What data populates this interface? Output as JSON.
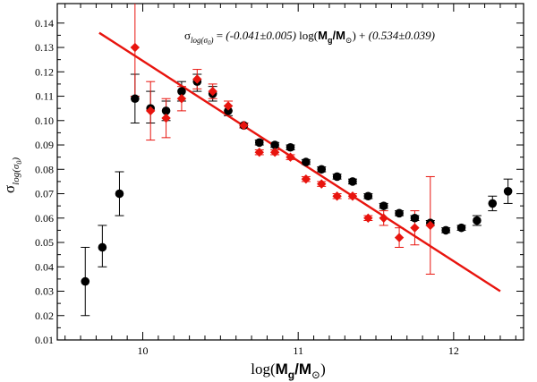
{
  "chart_data": {
    "type": "scatter",
    "xlabel": "log(M_g/M_sun)",
    "ylabel": "sigma_log(sigma_0)",
    "xlim": [
      9.45,
      12.45
    ],
    "ylim": [
      0.01,
      0.148
    ],
    "xticks": [
      "10",
      "11",
      "12"
    ],
    "yticks": [
      "0.01",
      "0.02",
      "0.03",
      "0.04",
      "0.05",
      "0.06",
      "0.07",
      "0.08",
      "0.09",
      "0.10",
      "0.11",
      "0.12",
      "0.13",
      "0.14"
    ],
    "annotation": {
      "prefix": "σ",
      "prefix_sub": "log(σ",
      "prefix_sub2": "0",
      "prefix_sub3": ")",
      "eq": " = ",
      "slope": "(-0.041±0.005)",
      "log": " log(",
      "m_g": "M",
      "m_g_sub": "g",
      "slash_m": "/M",
      "sun": "⊙",
      "close_plus": ") + ",
      "intercept": "(0.534±0.039)"
    },
    "axis_text": {
      "x_log": "log(",
      "x_m": "M",
      "x_g": "g",
      "x_slash": "/M",
      "x_sun": "⊙",
      "x_close": ")",
      "y_sigma": "σ",
      "y_sub": "log(σ",
      "y_sub0": "0",
      "y_close": ")"
    },
    "fit_line": {
      "name": "linear fit",
      "x": [
        9.72,
        12.3
      ],
      "y": [
        0.136,
        0.03
      ],
      "color": "#e8140e"
    },
    "series": [
      {
        "name": "black",
        "color": "#000000",
        "points": [
          {
            "x": 9.63,
            "y": 0.034,
            "lo": 0.02,
            "hi": 0.048
          },
          {
            "x": 9.74,
            "y": 0.048,
            "lo": 0.04,
            "hi": 0.057
          },
          {
            "x": 9.85,
            "y": 0.07,
            "lo": 0.061,
            "hi": 0.079
          },
          {
            "x": 9.95,
            "y": 0.109,
            "lo": 0.099,
            "hi": 0.119
          },
          {
            "x": 10.05,
            "y": 0.105,
            "lo": 0.099,
            "hi": 0.112
          },
          {
            "x": 10.15,
            "y": 0.104,
            "lo": 0.1,
            "hi": 0.108
          },
          {
            "x": 10.25,
            "y": 0.112,
            "lo": 0.108,
            "hi": 0.116
          },
          {
            "x": 10.35,
            "y": 0.116,
            "lo": 0.112,
            "hi": 0.119
          },
          {
            "x": 10.45,
            "y": 0.111,
            "lo": 0.108,
            "hi": 0.114
          },
          {
            "x": 10.55,
            "y": 0.104,
            "lo": 0.102,
            "hi": 0.106
          },
          {
            "x": 10.65,
            "y": 0.098,
            "lo": 0.097,
            "hi": 0.099
          },
          {
            "x": 10.75,
            "y": 0.091,
            "lo": 0.09,
            "hi": 0.092
          },
          {
            "x": 10.85,
            "y": 0.09,
            "lo": 0.089,
            "hi": 0.091
          },
          {
            "x": 10.95,
            "y": 0.089,
            "lo": 0.088,
            "hi": 0.09
          },
          {
            "x": 11.05,
            "y": 0.083,
            "lo": 0.082,
            "hi": 0.084
          },
          {
            "x": 11.15,
            "y": 0.08,
            "lo": 0.079,
            "hi": 0.081
          },
          {
            "x": 11.25,
            "y": 0.077,
            "lo": 0.076,
            "hi": 0.078
          },
          {
            "x": 11.35,
            "y": 0.075,
            "lo": 0.074,
            "hi": 0.076
          },
          {
            "x": 11.45,
            "y": 0.069,
            "lo": 0.068,
            "hi": 0.07
          },
          {
            "x": 11.55,
            "y": 0.065,
            "lo": 0.064,
            "hi": 0.066
          },
          {
            "x": 11.65,
            "y": 0.062,
            "lo": 0.061,
            "hi": 0.063
          },
          {
            "x": 11.75,
            "y": 0.06,
            "lo": 0.059,
            "hi": 0.061
          },
          {
            "x": 11.85,
            "y": 0.058,
            "lo": 0.057,
            "hi": 0.059
          },
          {
            "x": 11.95,
            "y": 0.055,
            "lo": 0.054,
            "hi": 0.056
          },
          {
            "x": 12.05,
            "y": 0.056,
            "lo": 0.055,
            "hi": 0.057
          },
          {
            "x": 12.15,
            "y": 0.059,
            "lo": 0.057,
            "hi": 0.061
          },
          {
            "x": 12.25,
            "y": 0.066,
            "lo": 0.063,
            "hi": 0.069
          },
          {
            "x": 12.35,
            "y": 0.071,
            "lo": 0.066,
            "hi": 0.076
          }
        ]
      },
      {
        "name": "red",
        "color": "#e8140e",
        "points": [
          {
            "x": 9.95,
            "y": 0.13,
            "lo": 0.11,
            "hi": 0.15
          },
          {
            "x": 10.05,
            "y": 0.104,
            "lo": 0.092,
            "hi": 0.116
          },
          {
            "x": 10.15,
            "y": 0.101,
            "lo": 0.093,
            "hi": 0.109
          },
          {
            "x": 10.25,
            "y": 0.109,
            "lo": 0.104,
            "hi": 0.114
          },
          {
            "x": 10.35,
            "y": 0.117,
            "lo": 0.113,
            "hi": 0.121
          },
          {
            "x": 10.45,
            "y": 0.112,
            "lo": 0.109,
            "hi": 0.115
          },
          {
            "x": 10.55,
            "y": 0.106,
            "lo": 0.104,
            "hi": 0.108
          },
          {
            "x": 10.65,
            "y": 0.098,
            "lo": 0.097,
            "hi": 0.099
          },
          {
            "x": 10.75,
            "y": 0.087,
            "lo": 0.086,
            "hi": 0.088
          },
          {
            "x": 10.85,
            "y": 0.087,
            "lo": 0.086,
            "hi": 0.088
          },
          {
            "x": 10.95,
            "y": 0.085,
            "lo": 0.084,
            "hi": 0.086
          },
          {
            "x": 11.05,
            "y": 0.076,
            "lo": 0.075,
            "hi": 0.077
          },
          {
            "x": 11.15,
            "y": 0.074,
            "lo": 0.073,
            "hi": 0.075
          },
          {
            "x": 11.25,
            "y": 0.069,
            "lo": 0.068,
            "hi": 0.07
          },
          {
            "x": 11.35,
            "y": 0.069,
            "lo": 0.068,
            "hi": 0.07
          },
          {
            "x": 11.45,
            "y": 0.06,
            "lo": 0.059,
            "hi": 0.061
          },
          {
            "x": 11.55,
            "y": 0.06,
            "lo": 0.057,
            "hi": 0.063
          },
          {
            "x": 11.65,
            "y": 0.052,
            "lo": 0.048,
            "hi": 0.056
          },
          {
            "x": 11.75,
            "y": 0.056,
            "lo": 0.049,
            "hi": 0.063
          },
          {
            "x": 11.85,
            "y": 0.057,
            "lo": 0.037,
            "hi": 0.077
          }
        ]
      }
    ]
  }
}
